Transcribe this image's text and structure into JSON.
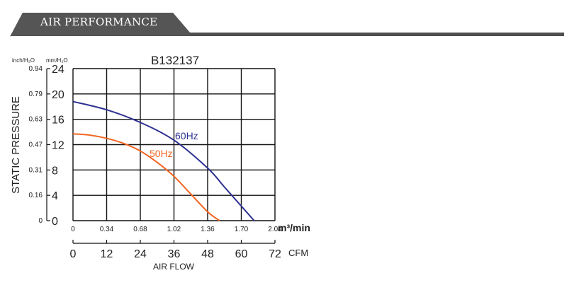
{
  "header": {
    "title": "AIR PERFORMANCE"
  },
  "chart_data": {
    "type": "line",
    "title": "B132137",
    "ylabel": "STATIC PRESSURE",
    "xlabel": "AIR FLOW",
    "left_unit_label": "inch/H₂O",
    "right_unit_label": "mm/H₂O",
    "y_mm": {
      "ticks": [
        "0",
        "4",
        "8",
        "12",
        "16",
        "20",
        "24"
      ],
      "range": [
        0,
        24
      ]
    },
    "y_inch_ticks": [
      "0",
      "0.16",
      "0.31",
      "0.47",
      "0.63",
      "0.79",
      "0.94"
    ],
    "x_m3": {
      "ticks": [
        "0",
        "0.34",
        "0.68",
        "1.02",
        "1.36",
        "1.70",
        "2.04"
      ],
      "unit": "m³/min",
      "range": [
        0,
        2.04
      ]
    },
    "x_cfm": {
      "ticks": [
        "0",
        "12",
        "24",
        "36",
        "48",
        "60",
        "72"
      ],
      "unit": "CFM",
      "range": [
        0,
        72
      ]
    },
    "grid": true,
    "series": [
      {
        "name": "60Hz",
        "color": "#2e3192",
        "x": [
          0,
          0.34,
          0.68,
          1.02,
          1.36,
          1.53,
          1.7,
          1.83
        ],
        "y": [
          18.8,
          17.5,
          15.5,
          12.7,
          8.3,
          5.3,
          2.3,
          0
        ]
      },
      {
        "name": "50Hz",
        "color": "#f26522",
        "x": [
          0,
          0.17,
          0.34,
          0.51,
          0.68,
          0.85,
          1.02,
          1.19,
          1.36,
          1.48
        ],
        "y": [
          13.7,
          13.5,
          13.0,
          12.2,
          11.0,
          9.2,
          7.0,
          4.2,
          1.4,
          0
        ]
      }
    ]
  }
}
